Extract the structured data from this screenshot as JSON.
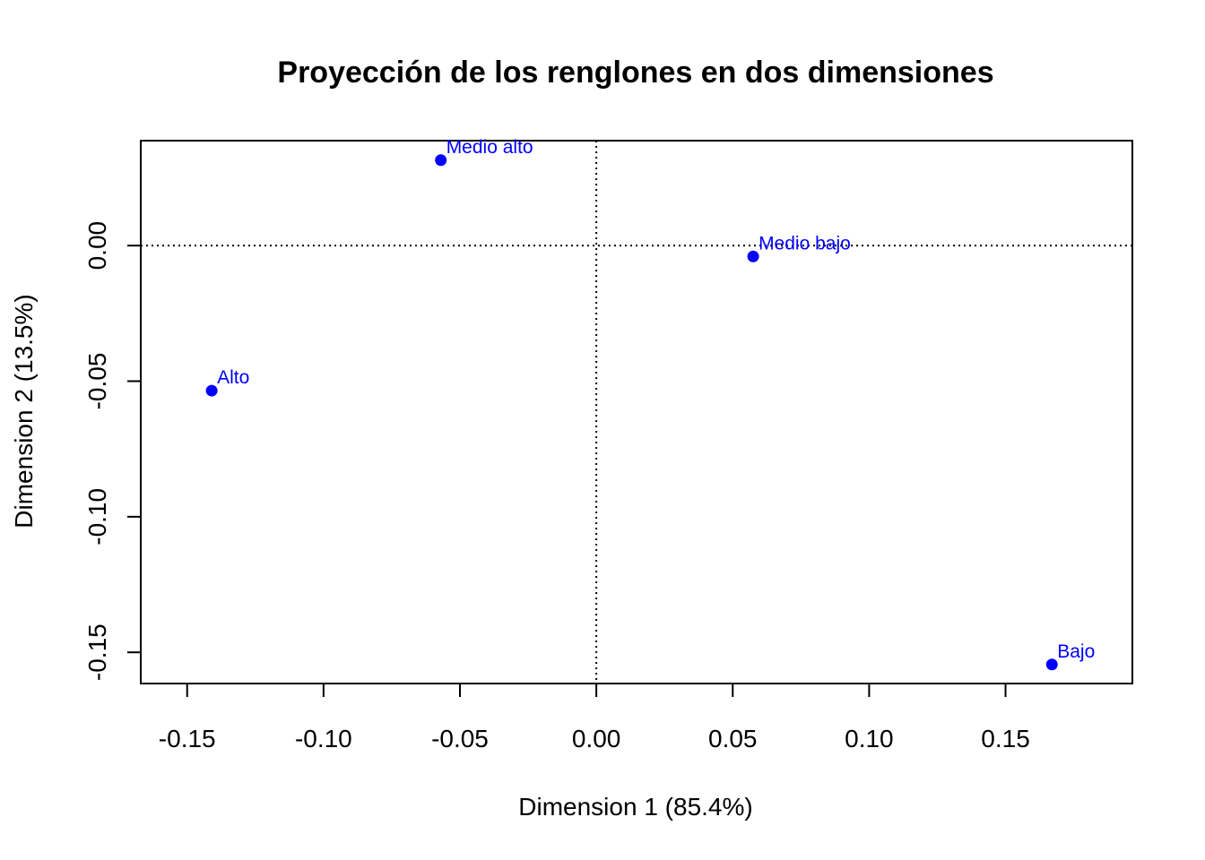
{
  "chart_data": {
    "type": "scatter",
    "title": "Proyección de los renglones en dos dimensiones",
    "xlabel": "Dimension 1 (85.4%)",
    "ylabel": "Dimension 2 (13.5%)",
    "xlim": [
      -0.167,
      0.1965
    ],
    "ylim": [
      -0.1615,
      0.0387
    ],
    "x_ticks": [
      -0.15,
      -0.1,
      -0.05,
      0.0,
      0.05,
      0.1,
      0.15
    ],
    "x_tick_labels": [
      "-0.15",
      "-0.10",
      "-0.05",
      "0.00",
      "0.05",
      "0.10",
      "0.15"
    ],
    "y_ticks": [
      -0.15,
      -0.1,
      -0.05,
      0.0
    ],
    "y_tick_labels": [
      "-0.15",
      "-0.10",
      "-0.05",
      "0.00"
    ],
    "reference_lines": {
      "x": 0,
      "y": 0,
      "style": "dotted"
    },
    "grid": false,
    "point_color": "#0000ff",
    "points": [
      {
        "label": "Medio alto",
        "x": -0.057,
        "y": 0.0315
      },
      {
        "label": "Medio bajo",
        "x": 0.0575,
        "y": -0.004
      },
      {
        "label": "Alto",
        "x": -0.141,
        "y": -0.0535
      },
      {
        "label": "Bajo",
        "x": 0.167,
        "y": -0.1545
      }
    ]
  }
}
